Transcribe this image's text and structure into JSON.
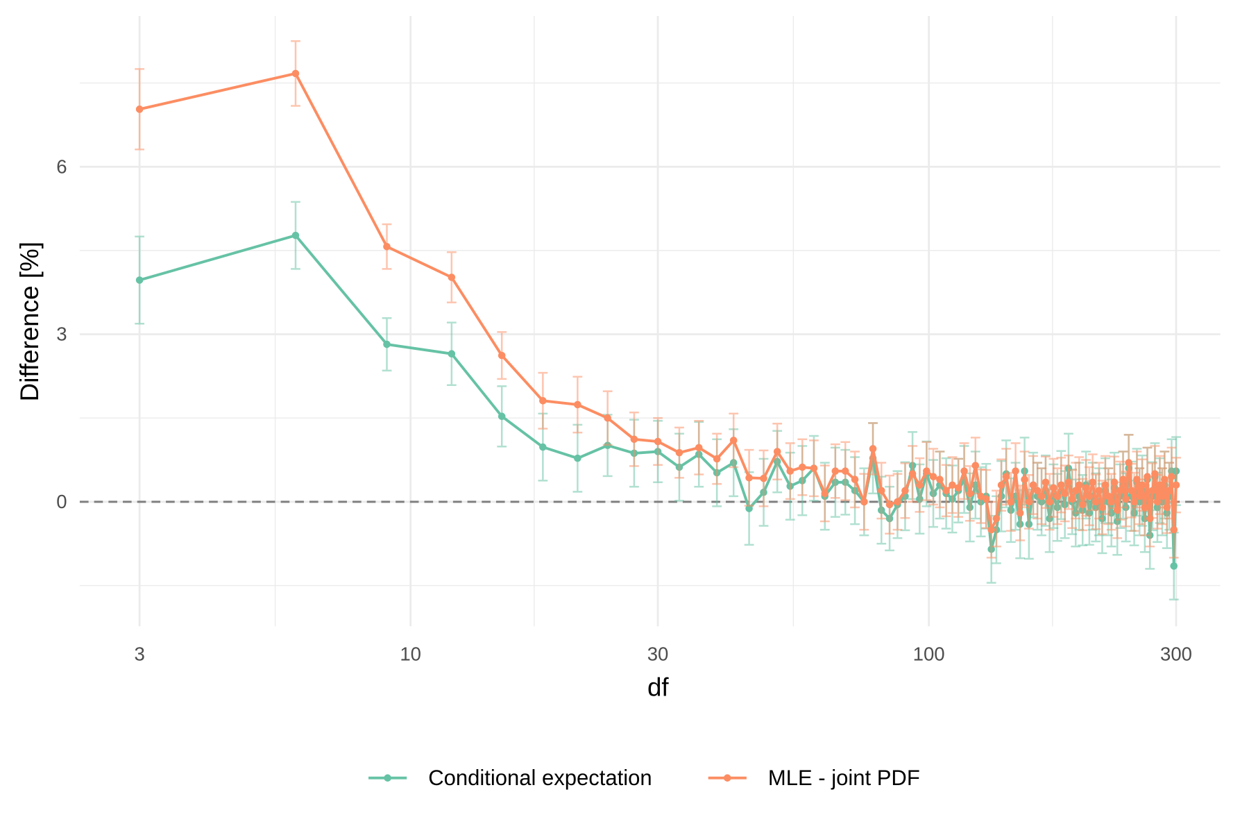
{
  "chart_data": {
    "type": "line",
    "x_label": "df",
    "y_label": "Difference [%]",
    "xscale": "log",
    "xlim": [
      2.3,
      365
    ],
    "ylim": [
      -2.23,
      8.7
    ],
    "xticks": [
      3,
      10,
      30,
      100,
      300
    ],
    "yticks": [
      0,
      3,
      6
    ],
    "minor_xticks": [
      5.48,
      17.32,
      54.77,
      173.2
    ],
    "minor_yticks": [
      -1.5,
      1.5,
      4.5,
      7.5
    ],
    "grid": true,
    "hline": 0,
    "legend": "bottom",
    "x": [
      3,
      6,
      9,
      12,
      15,
      18,
      21,
      24,
      27,
      30,
      33,
      36,
      39,
      42,
      45,
      48,
      51,
      54,
      57,
      60,
      63,
      66,
      69,
      72,
      75,
      78,
      81,
      84,
      87,
      90,
      93,
      96,
      99,
      102,
      105,
      108,
      111,
      114,
      117,
      120,
      123,
      126,
      129,
      132,
      135,
      138,
      141,
      144,
      147,
      150,
      153,
      156,
      159,
      162,
      165,
      168,
      171,
      174,
      177,
      180,
      183,
      186,
      189,
      192,
      195,
      198,
      201,
      204,
      207,
      210,
      213,
      216,
      219,
      222,
      225,
      228,
      231,
      234,
      237,
      240,
      243,
      246,
      249,
      252,
      255,
      258,
      261,
      264,
      267,
      270,
      273,
      276,
      279,
      282,
      285,
      288,
      291,
      294,
      297,
      300
    ],
    "series": [
      {
        "name": "Conditional expectation",
        "color": "#66c2a5",
        "values": [
          3.97,
          4.77,
          2.82,
          2.65,
          1.53,
          0.98,
          0.78,
          1.01,
          0.87,
          0.9,
          0.62,
          0.85,
          0.52,
          0.7,
          -0.12,
          0.17,
          0.72,
          0.28,
          0.38,
          0.6,
          0.1,
          0.35,
          0.35,
          0.2,
          0.0,
          0.78,
          -0.15,
          -0.3,
          -0.05,
          0.1,
          0.65,
          0.05,
          0.5,
          0.15,
          0.3,
          0.15,
          0.05,
          0.2,
          0.4,
          -0.1,
          0.3,
          0.0,
          0.1,
          -0.85,
          -0.5,
          0.1,
          0.5,
          -0.15,
          0.1,
          -0.4,
          0.55,
          -0.4,
          0.3,
          0.1,
          0.0,
          0.2,
          -0.3,
          0.1,
          -0.1,
          0.3,
          -0.05,
          0.6,
          0.0,
          -0.2,
          0.1,
          -0.15,
          0.3,
          -0.2,
          0.1,
          -0.1,
          0.0,
          -0.3,
          0.2,
          0.0,
          -0.2,
          0.25,
          -0.35,
          0.1,
          0.3,
          -0.1,
          0.6,
          0.1,
          -0.2,
          0.35,
          0.0,
          0.2,
          -0.3,
          0.4,
          -0.6,
          0.1,
          0.45,
          -0.1,
          0.2,
          0.0,
          0.3,
          -0.2,
          0.1,
          0.55,
          -1.15,
          0.55
        ],
        "errors": [
          0.78,
          0.6,
          0.47,
          0.56,
          0.54,
          0.6,
          0.6,
          0.55,
          0.6,
          0.55,
          0.6,
          0.58,
          0.6,
          0.6,
          0.65,
          0.6,
          0.55,
          0.6,
          0.62,
          0.58,
          0.6,
          0.62,
          0.58,
          0.6,
          0.6,
          0.63,
          0.6,
          0.57,
          0.6,
          0.61,
          0.6,
          0.62,
          0.58,
          0.6,
          0.6,
          0.63,
          0.6,
          0.57,
          0.6,
          0.61,
          0.6,
          0.62,
          0.58,
          0.6,
          0.6,
          0.63,
          0.6,
          0.57,
          0.6,
          0.61,
          0.6,
          0.62,
          0.58,
          0.6,
          0.6,
          0.63,
          0.6,
          0.57,
          0.6,
          0.61,
          0.6,
          0.62,
          0.58,
          0.6,
          0.6,
          0.63,
          0.6,
          0.57,
          0.6,
          0.61,
          0.6,
          0.62,
          0.58,
          0.6,
          0.6,
          0.63,
          0.6,
          0.57,
          0.6,
          0.61,
          0.6,
          0.62,
          0.58,
          0.6,
          0.6,
          0.63,
          0.6,
          0.57,
          0.6,
          0.61,
          0.6,
          0.62,
          0.58,
          0.6,
          0.6,
          0.63,
          0.6,
          0.57,
          0.6,
          0.61
        ]
      },
      {
        "name": "MLE - joint PDF",
        "color": "#fc8d62",
        "values": [
          7.03,
          7.67,
          4.57,
          4.02,
          2.62,
          1.81,
          1.74,
          1.5,
          1.12,
          1.08,
          0.88,
          0.97,
          0.77,
          1.1,
          0.43,
          0.42,
          0.9,
          0.55,
          0.62,
          0.6,
          0.15,
          0.55,
          0.55,
          0.4,
          0.0,
          0.95,
          0.2,
          -0.05,
          0.0,
          0.2,
          0.5,
          0.3,
          0.55,
          0.45,
          0.4,
          0.2,
          0.3,
          0.25,
          0.55,
          0.15,
          0.65,
          0.1,
          0.05,
          -0.5,
          -0.3,
          0.3,
          0.45,
          0.0,
          0.55,
          -0.2,
          0.4,
          0.0,
          0.3,
          0.2,
          0.1,
          0.35,
          0.0,
          0.25,
          0.1,
          0.3,
          0.15,
          0.35,
          0.05,
          0.2,
          0.3,
          -0.05,
          0.25,
          0.1,
          0.35,
          0.0,
          0.2,
          -0.1,
          0.3,
          0.1,
          0.0,
          0.35,
          -0.15,
          0.2,
          0.4,
          0.05,
          0.7,
          0.2,
          0.0,
          0.4,
          0.1,
          0.3,
          -0.1,
          0.45,
          -0.3,
          0.2,
          0.5,
          0.0,
          0.3,
          0.1,
          0.4,
          -0.1,
          0.2,
          0.45,
          -0.5,
          0.3
        ],
        "errors": [
          0.72,
          0.58,
          0.4,
          0.45,
          0.42,
          0.5,
          0.5,
          0.48,
          0.48,
          0.42,
          0.45,
          0.48,
          0.45,
          0.48,
          0.5,
          0.5,
          0.5,
          0.5,
          0.5,
          0.5,
          0.5,
          0.48,
          0.52,
          0.5,
          0.5,
          0.46,
          0.5,
          0.52,
          0.5,
          0.49,
          0.5,
          0.48,
          0.52,
          0.5,
          0.5,
          0.46,
          0.5,
          0.52,
          0.5,
          0.49,
          0.5,
          0.48,
          0.52,
          0.5,
          0.5,
          0.46,
          0.5,
          0.52,
          0.5,
          0.49,
          0.5,
          0.48,
          0.52,
          0.5,
          0.5,
          0.46,
          0.5,
          0.52,
          0.5,
          0.49,
          0.5,
          0.48,
          0.52,
          0.5,
          0.5,
          0.46,
          0.5,
          0.52,
          0.5,
          0.49,
          0.5,
          0.48,
          0.52,
          0.5,
          0.5,
          0.46,
          0.5,
          0.52,
          0.5,
          0.49,
          0.5,
          0.48,
          0.52,
          0.5,
          0.5,
          0.46,
          0.5,
          0.52,
          0.5,
          0.49,
          0.5,
          0.48,
          0.52,
          0.5,
          0.5,
          0.46,
          0.5,
          0.52,
          0.5,
          0.49
        ]
      }
    ]
  }
}
